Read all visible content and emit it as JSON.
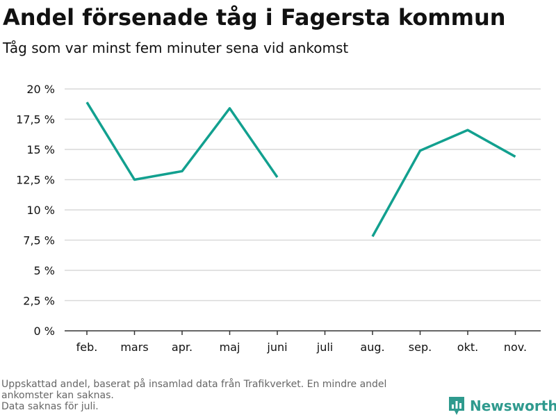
{
  "header": {
    "title": "Andel försenade tåg i Fagersta kommun",
    "subtitle": "Tåg som var minst fem minuter sena vid ankomst"
  },
  "footer": {
    "note_line1": "Uppskattad andel, baserat på insamlad data från Trafikverket. En mindre andel",
    "note_line2": "ankomster kan saknas.",
    "note_line3": "Data saknas för juli.",
    "brand_name": "Newsworthy",
    "brand_icon": "bar-chart-logo-icon"
  },
  "colors": {
    "line": "#12a08f",
    "grid": "#d9d9d9",
    "axis": "#333333",
    "brand": "#2f9a8e",
    "note": "#666666"
  },
  "chart_data": {
    "type": "line",
    "title": "Andel försenade tåg i Fagersta kommun",
    "subtitle": "Tåg som var minst fem minuter sena vid ankomst",
    "categories": [
      "feb.",
      "mars",
      "apr.",
      "maj",
      "juni",
      "juli",
      "aug.",
      "sep.",
      "okt.",
      "nov."
    ],
    "series": [
      {
        "values": [
          18.9,
          12.5,
          13.2,
          18.4,
          12.7,
          null,
          7.8,
          14.9,
          16.6,
          14.4
        ]
      }
    ],
    "ylim": [
      0,
      20
    ],
    "yticks": [
      0,
      2.5,
      5,
      7.5,
      10,
      12.5,
      15,
      17.5,
      20
    ],
    "ytick_labels": [
      "0 %",
      "2,5 %",
      "5 %",
      "7,5 %",
      "10 %",
      "12,5 %",
      "15 %",
      "17,5 %",
      "20 %"
    ],
    "grid": true,
    "legend": "none"
  }
}
